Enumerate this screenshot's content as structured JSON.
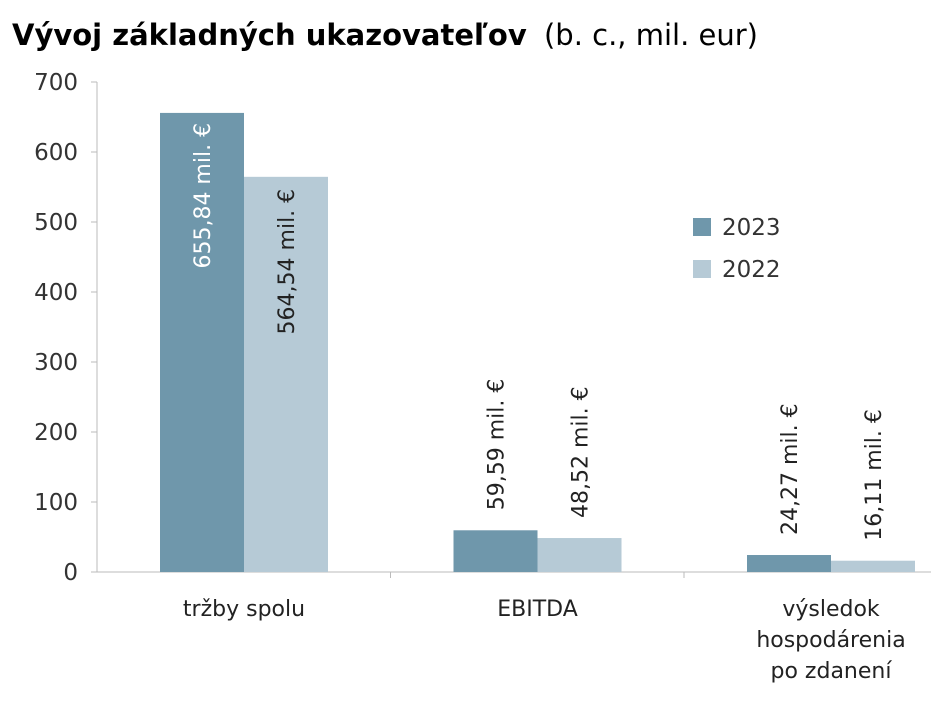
{
  "chart_data": {
    "type": "bar",
    "title": "Vývoj základných ukazovateľov",
    "subtitle": "(b. c., mil. eur)",
    "categories": [
      [
        "tržby spolu"
      ],
      [
        "EBITDA"
      ],
      [
        "výsledok",
        "hospodárenia",
        "po zdanení"
      ]
    ],
    "series": [
      {
        "name": "2023",
        "color": "#6f97ab",
        "values": [
          655.84,
          59.59,
          24.27
        ],
        "labels": [
          "655,84 mil. €",
          "59,59 mil. €",
          "24,27 mil. €"
        ]
      },
      {
        "name": "2022",
        "color": "#b6cad6",
        "values": [
          564.54,
          48.52,
          16.11
        ],
        "labels": [
          "564,54 mil. €",
          "48,52 mil. €",
          "16,11 mil. €"
        ]
      }
    ],
    "ylim": [
      0,
      700
    ],
    "yticks": [
      0,
      100,
      200,
      300,
      400,
      500,
      600,
      700
    ],
    "xlabel": "",
    "ylabel": "",
    "grid": false,
    "legend": "top-right"
  }
}
